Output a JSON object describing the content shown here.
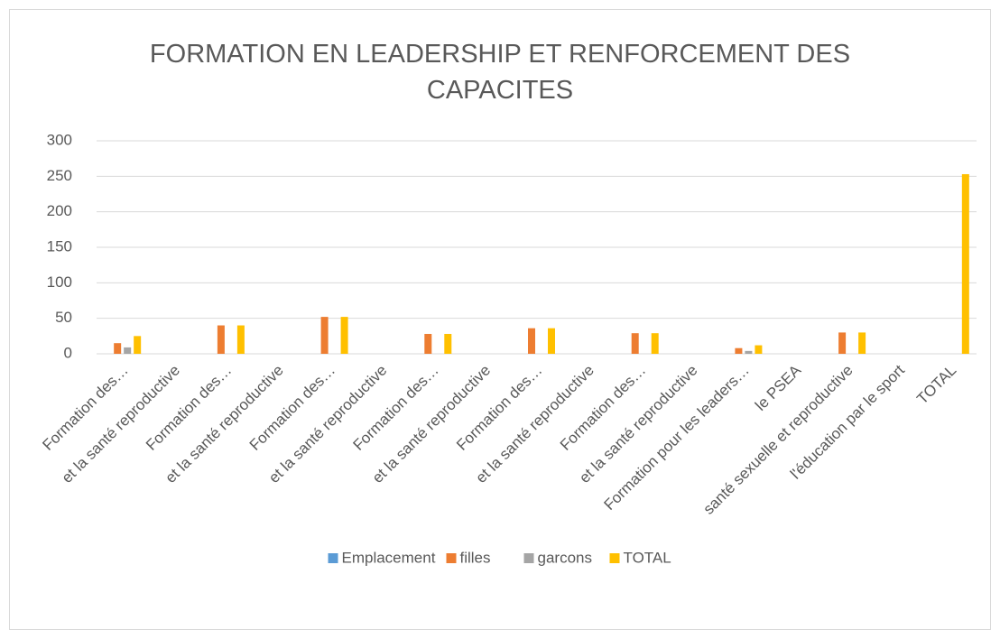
{
  "chart_data": {
    "type": "bar",
    "title": "FORMATION EN LEADERSHIP ET RENFORCEMENT DES CAPACITES",
    "categories": [
      "Formation des…",
      "et la santé reproductive",
      "Formation des…",
      "et la santé reproductive",
      "Formation des…",
      "et la santé reproductive",
      "Formation des…",
      "et la santé reproductive",
      "Formation des…",
      "et la santé reproductive",
      "Formation des…",
      "et la santé reproductive",
      "Formation pour les leaders…",
      "le PSEA",
      "santé sexuelle et reproductive",
      "l'éducation par le sport",
      "TOTAL"
    ],
    "series": [
      {
        "name": "Emplacement",
        "color": "#5b9bd5",
        "values": [
          null,
          null,
          null,
          null,
          null,
          null,
          null,
          null,
          null,
          null,
          null,
          null,
          null,
          null,
          null,
          null,
          null
        ]
      },
      {
        "name": "filles",
        "color": "#ed7d31",
        "values": [
          15,
          null,
          40,
          null,
          52,
          null,
          28,
          null,
          36,
          null,
          29,
          null,
          8,
          null,
          30,
          null,
          null
        ]
      },
      {
        "name": "garcons",
        "color": "#a5a5a5",
        "values": [
          9,
          null,
          null,
          null,
          null,
          null,
          null,
          null,
          null,
          null,
          null,
          null,
          4,
          null,
          null,
          null,
          null
        ]
      },
      {
        "name": "TOTAL",
        "color": "#ffc000",
        "values": [
          25,
          null,
          40,
          null,
          52,
          null,
          28,
          null,
          36,
          null,
          29,
          null,
          12,
          null,
          30,
          null,
          253
        ]
      }
    ],
    "ylim": [
      0,
      300
    ],
    "yticks": [
      0,
      50,
      100,
      150,
      200,
      250,
      300
    ],
    "grid": true,
    "legend": "bottom"
  }
}
